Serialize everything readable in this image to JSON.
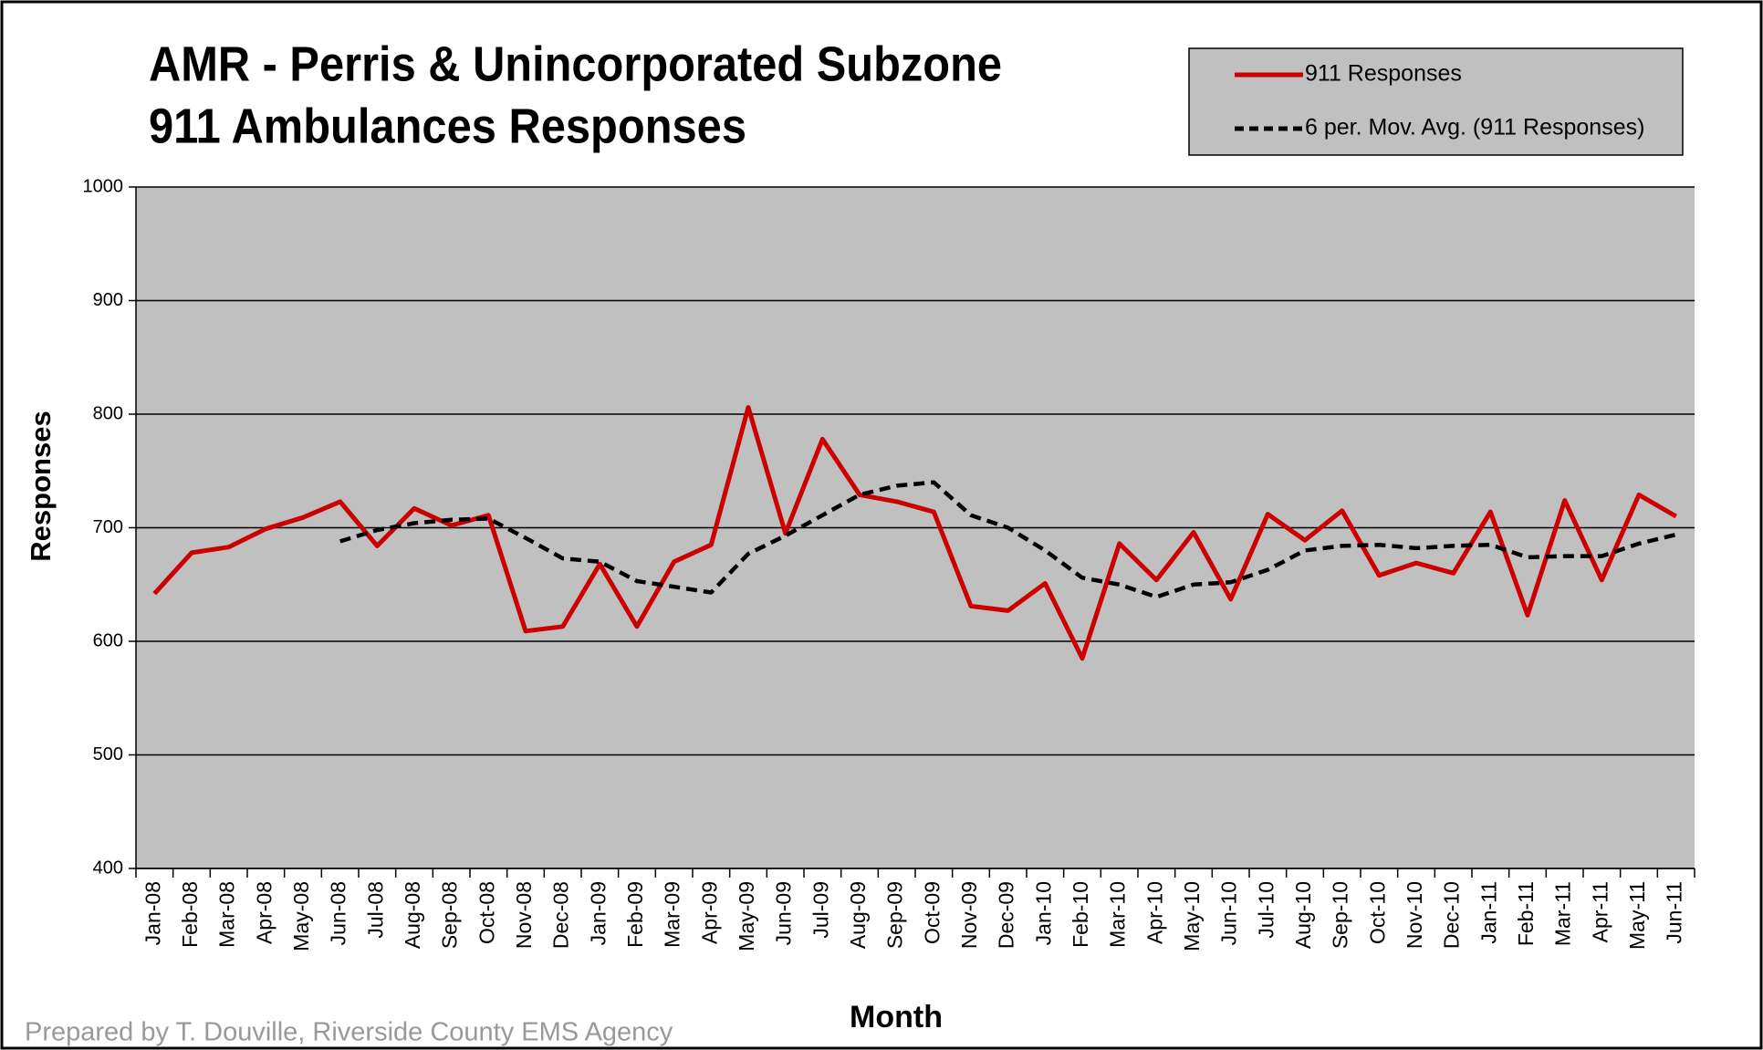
{
  "chart_data": {
    "type": "line",
    "title": "AMR - Perris & Unincorporated Subzone",
    "subtitle": "911 Ambulances Responses",
    "xlabel": "Month",
    "ylabel": "Responses",
    "note": "Prepared by T. Douville, Riverside  County EMS Agency",
    "categories": [
      "Jan-08",
      "Feb-08",
      "Mar-08",
      "Apr-08",
      "May-08",
      "Jun-08",
      "Jul-08",
      "Aug-08",
      "Sep-08",
      "Oct-08",
      "Nov-08",
      "Dec-08",
      "Jan-09",
      "Feb-09",
      "Mar-09",
      "Apr-09",
      "May-09",
      "Jun-09",
      "Jul-09",
      "Aug-09",
      "Sep-09",
      "Oct-09",
      "Nov-09",
      "Dec-09",
      "Jan-10",
      "Feb-10",
      "Mar-10",
      "Apr-10",
      "May-10",
      "Jun-10",
      "Jul-10",
      "Aug-10",
      "Sep-10",
      "Oct-10",
      "Nov-10",
      "Dec-10",
      "Jan-11",
      "Feb-11",
      "Mar-11",
      "Apr-11",
      "May-11",
      "Jun-11"
    ],
    "series": [
      {
        "name": "911 Responses",
        "color": "#cc0000",
        "dash": false,
        "values": [
          642,
          678,
          683,
          699,
          709,
          723,
          684,
          717,
          702,
          711,
          609,
          613,
          668,
          613,
          670,
          685,
          806,
          695,
          778,
          729,
          723,
          714,
          631,
          627,
          651,
          585,
          686,
          654,
          696,
          637,
          712,
          689,
          715,
          658,
          669,
          660,
          714,
          623,
          724,
          654,
          729,
          710
        ]
      },
      {
        "name": "6 per. Mov. Avg. (911 Responses)",
        "color": "#000000",
        "dash": true,
        "values": [
          null,
          null,
          null,
          null,
          null,
          688,
          698,
          704,
          707,
          708,
          691,
          673,
          670,
          653,
          648,
          643,
          677,
          693,
          711,
          729,
          737,
          740,
          711,
          700,
          680,
          656,
          650,
          639,
          650,
          652,
          663,
          680,
          684,
          685,
          682,
          684,
          685,
          674,
          675,
          675,
          686,
          694
        ]
      }
    ],
    "ylim": [
      400,
      1000
    ],
    "yticks": [
      400,
      500,
      600,
      700,
      800,
      900,
      1000
    ],
    "grid": true,
    "legend": "top-right",
    "plot_background": "#c0c0c0"
  }
}
